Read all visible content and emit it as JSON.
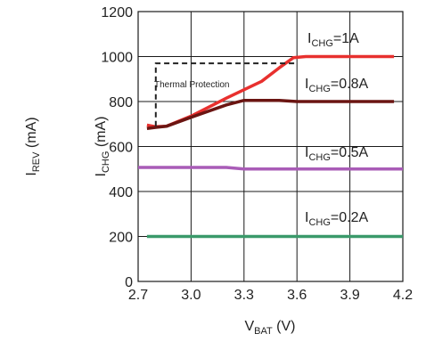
{
  "chart_data": {
    "type": "line",
    "xlabel_main": "V",
    "xlabel_sub": "BAT",
    "xlabel_unit": " (V)",
    "ylabel_left_main": "I",
    "ylabel_left_sub": "REV",
    "ylabel_left_unit": " (mA)",
    "ylabel_inner_main": "I",
    "ylabel_inner_sub": "CHG",
    "ylabel_inner_unit": " (mA)",
    "xlim": [
      2.7,
      4.2
    ],
    "ylim": [
      0,
      1200
    ],
    "xticks": [
      2.7,
      3.0,
      3.3,
      3.6,
      3.9,
      4.2
    ],
    "xtick_labels": [
      "2.7",
      "3.0",
      "3.3",
      "3.6",
      "3.9",
      "4.2"
    ],
    "yticks": [
      0,
      200,
      400,
      600,
      800,
      1000,
      1200
    ],
    "ytick_labels": [
      "0",
      "200",
      "400",
      "600",
      "800",
      "1000",
      "1200"
    ],
    "grid": true,
    "series": [
      {
        "label_main": "I",
        "label_sub": "CHG",
        "label_rest": "=1A",
        "color": "#e8302e",
        "x": [
          2.75,
          2.8,
          2.86,
          3.0,
          3.2,
          3.4,
          3.5,
          3.58,
          3.65,
          3.8,
          4.0,
          4.15
        ],
        "y": [
          695,
          688,
          690,
          735,
          815,
          890,
          950,
          995,
          1000,
          1000,
          1000,
          1000
        ]
      },
      {
        "label_main": "I",
        "label_sub": "CHG",
        "label_rest": "=0.8A",
        "color": "#6b1512",
        "x": [
          2.75,
          2.8,
          2.86,
          3.0,
          3.2,
          3.3,
          3.4,
          3.5,
          3.6,
          3.8,
          4.0,
          4.15
        ],
        "y": [
          680,
          685,
          690,
          730,
          785,
          805,
          805,
          805,
          800,
          800,
          800,
          800
        ]
      },
      {
        "label_main": "I",
        "label_sub": "CHG",
        "label_rest": "=0.5A",
        "color": "#a95cb7",
        "x": [
          2.7,
          3.0,
          3.1,
          3.2,
          3.3,
          3.6,
          3.9,
          4.2
        ],
        "y": [
          507,
          507,
          507,
          507,
          500,
          500,
          500,
          500
        ]
      },
      {
        "label_main": "I",
        "label_sub": "CHG",
        "label_rest": "=0.2A",
        "color": "#3a9a6a",
        "x": [
          2.75,
          3.0,
          3.3,
          3.6,
          3.9,
          4.2
        ],
        "y": [
          200,
          200,
          200,
          200,
          200,
          200
        ]
      }
    ],
    "thermal_line": {
      "label": "Thermal Protection",
      "color": "#222222",
      "x": [
        2.8,
        2.8,
        3.59
      ],
      "y": [
        690,
        970,
        970
      ]
    }
  }
}
